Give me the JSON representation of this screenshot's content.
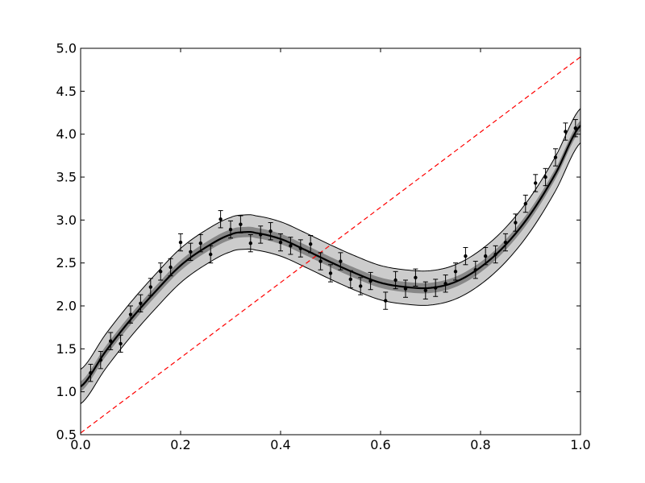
{
  "chart_data": {
    "type": "scatter",
    "title": "",
    "xlabel": "",
    "ylabel": "",
    "xlim": [
      0.0,
      1.0
    ],
    "ylim": [
      0.5,
      5.0
    ],
    "x_ticks": [
      "0.0",
      "0.2",
      "0.4",
      "0.6",
      "0.8",
      "1.0"
    ],
    "y_ticks": [
      "0.5",
      "1.0",
      "1.5",
      "2.0",
      "2.5",
      "3.0",
      "3.5",
      "4.0",
      "4.5",
      "5.0"
    ],
    "grid": false,
    "legend": "none",
    "colors": {
      "fit_line": "#000000",
      "inner_band": "#888888",
      "outer_band": "#cccccc",
      "reference_line": "#ff0000",
      "points": "#000000"
    },
    "fit_curve": {
      "x": [
        0.0,
        0.05,
        0.1,
        0.15,
        0.2,
        0.25,
        0.3,
        0.33,
        0.35,
        0.4,
        0.45,
        0.5,
        0.55,
        0.6,
        0.65,
        0.7,
        0.75,
        0.8,
        0.85,
        0.9,
        0.95,
        1.0
      ],
      "y": [
        1.06,
        1.47,
        1.84,
        2.17,
        2.47,
        2.68,
        2.83,
        2.86,
        2.85,
        2.78,
        2.65,
        2.51,
        2.38,
        2.27,
        2.22,
        2.21,
        2.28,
        2.45,
        2.71,
        3.07,
        3.54,
        4.1
      ]
    },
    "inner_band_halfwidth": 0.06,
    "outer_band_halfwidth": 0.2,
    "reference_line": {
      "x": [
        0.0,
        1.0
      ],
      "y": [
        0.52,
        4.9
      ]
    },
    "points": {
      "x": [
        0.02,
        0.04,
        0.06,
        0.08,
        0.1,
        0.12,
        0.14,
        0.16,
        0.18,
        0.2,
        0.22,
        0.24,
        0.26,
        0.28,
        0.3,
        0.32,
        0.34,
        0.36,
        0.38,
        0.4,
        0.42,
        0.44,
        0.46,
        0.48,
        0.5,
        0.52,
        0.54,
        0.56,
        0.58,
        0.61,
        0.63,
        0.65,
        0.67,
        0.69,
        0.71,
        0.73,
        0.75,
        0.77,
        0.79,
        0.81,
        0.83,
        0.85,
        0.87,
        0.89,
        0.91,
        0.93,
        0.95,
        0.97,
        0.99
      ],
      "y": [
        1.22,
        1.37,
        1.59,
        1.56,
        1.9,
        2.03,
        2.22,
        2.4,
        2.45,
        2.74,
        2.63,
        2.73,
        2.6,
        3.01,
        2.89,
        2.95,
        2.73,
        2.83,
        2.87,
        2.74,
        2.7,
        2.67,
        2.72,
        2.52,
        2.38,
        2.52,
        2.31,
        2.23,
        2.29,
        2.06,
        2.3,
        2.2,
        2.33,
        2.18,
        2.21,
        2.26,
        2.4,
        2.58,
        2.42,
        2.58,
        2.6,
        2.74,
        2.97,
        3.19,
        3.43,
        3.5,
        3.73,
        4.03,
        4.07
      ],
      "yerr": 0.1
    }
  }
}
